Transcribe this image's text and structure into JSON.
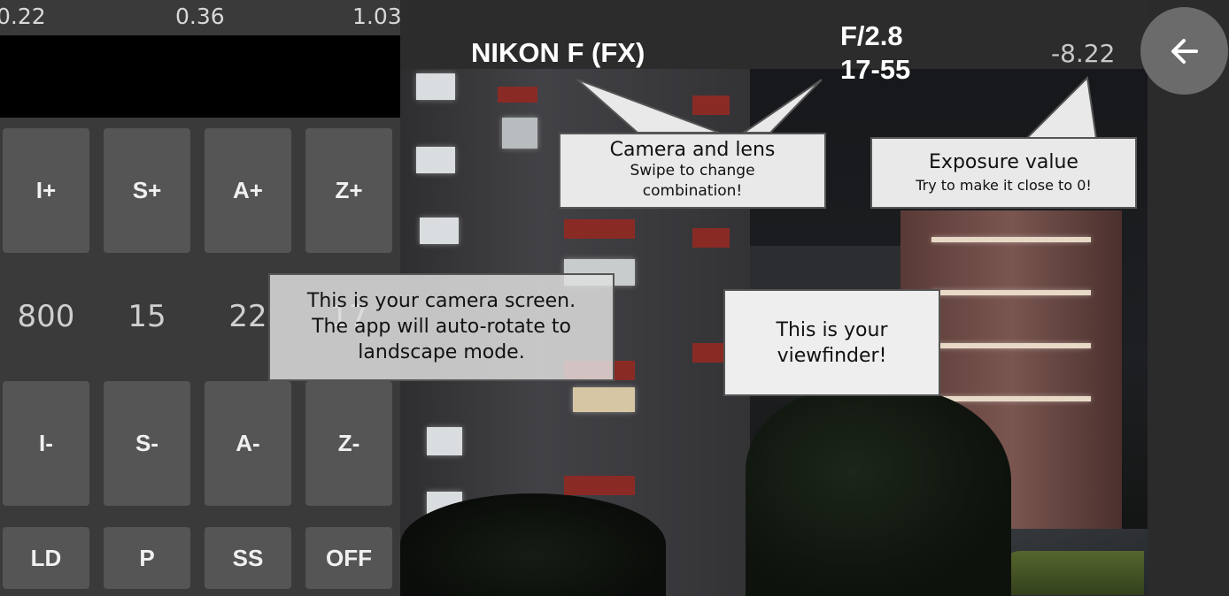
{
  "meter": {
    "left": "0.22",
    "center": "0.36",
    "right": "1.03"
  },
  "buttons": {
    "iso_up": "I+",
    "shutter_up": "S+",
    "aperture_up": "A+",
    "zoom_up": "Z+",
    "iso_down": "I-",
    "shutter_down": "S-",
    "aperture_down": "A-",
    "zoom_down": "Z-",
    "ld": "LD",
    "p": "P",
    "ss": "SS",
    "off": "OFF"
  },
  "values": {
    "iso": "800",
    "shutter": "15",
    "aperture": "22",
    "zoom": "17"
  },
  "top_bar": {
    "camera": "NIKON F (FX)",
    "aperture": "F/2.8",
    "focal": "17-55",
    "exposure_value": "-8.22"
  },
  "tutorial": {
    "camera_lens_title": "Camera and lens",
    "camera_lens_sub_1": "Swipe to change",
    "camera_lens_sub_2": "combination!",
    "ev_title": "Exposure value",
    "ev_sub": "Try to make it close to 0!",
    "screen_line_1": "This is your camera screen.",
    "screen_line_2": "The app will auto-rotate to",
    "screen_line_3": "landscape mode.",
    "view_line_1": "This is your",
    "view_line_2": "viewfinder!"
  },
  "icons": {
    "back": "arrow-left-icon"
  },
  "colors": {
    "button": "#555555",
    "panel": "#3a3a3a",
    "bubble": "#e9e9e9"
  }
}
